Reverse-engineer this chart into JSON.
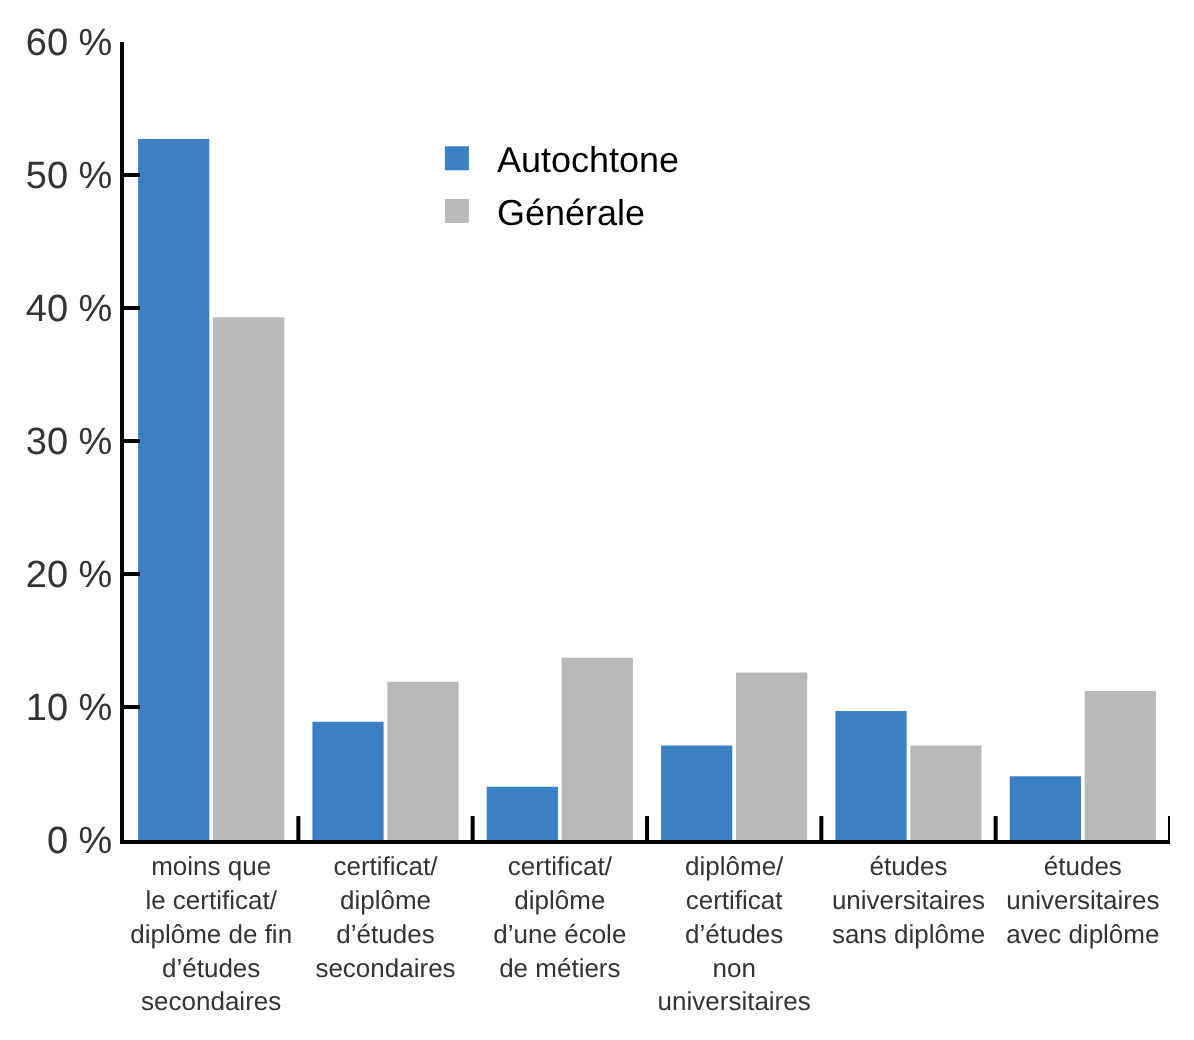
{
  "chart_data": {
    "type": "bar",
    "categories": [
      "moins que\nle certificat/\ndiplôme de fin\nd’études\nsecondaires",
      "certificat/\ndiplôme\nd’études\nsecondaires",
      "certificat/\ndiplôme\nd’une école\nde métiers",
      "diplôme/\ncertificat\nd’études\nnon\nuniversitaires",
      "études\nuniversitaires\nsans diplôme",
      "études\nuniversitaires\navec diplôme"
    ],
    "series": [
      {
        "name": "Autochtone",
        "color": "#3b80c4",
        "values": [
          52.7,
          8.9,
          4.0,
          7.1,
          9.7,
          4.8
        ]
      },
      {
        "name": "Générale",
        "color": "#b9b9b9",
        "values": [
          39.3,
          11.9,
          13.7,
          12.6,
          7.1,
          11.2
        ]
      }
    ],
    "ylim": [
      0,
      60
    ],
    "yticks": [
      {
        "value": 0,
        "label": "0 %"
      },
      {
        "value": 10,
        "label": "10 %"
      },
      {
        "value": 20,
        "label": "20 %"
      },
      {
        "value": 30,
        "label": "30 %"
      },
      {
        "value": 40,
        "label": "40 %"
      },
      {
        "value": 50,
        "label": "50 %"
      },
      {
        "value": 60,
        "label": "60 %"
      }
    ],
    "grid": false,
    "legend": "top"
  }
}
